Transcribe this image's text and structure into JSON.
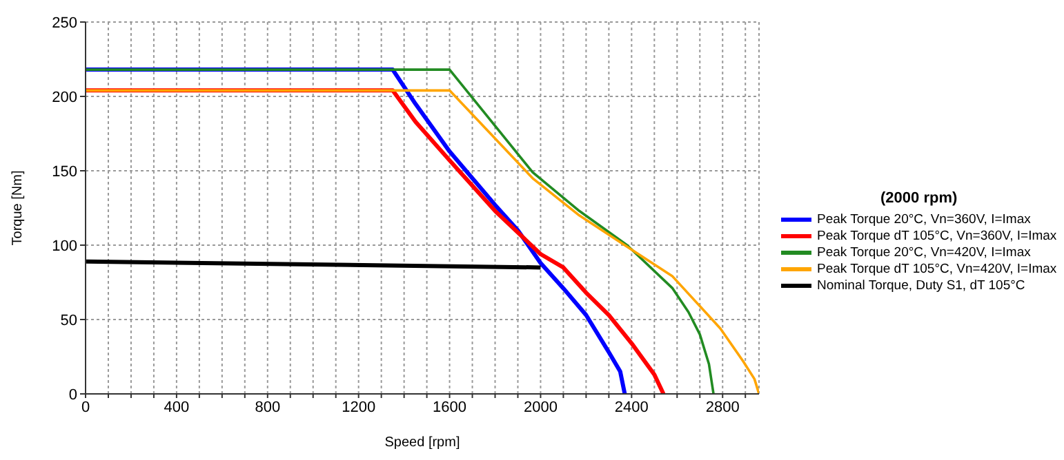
{
  "chart_data": {
    "type": "line",
    "xlabel": "Speed [rpm]",
    "ylabel": "Torque [Nm]",
    "legend_title": "(2000 rpm)",
    "legend": "right",
    "grid": true,
    "marker": "none",
    "line_style": "solid",
    "xlim": [
      0,
      2960
    ],
    "ylim": [
      0,
      250
    ],
    "xticks": [
      0,
      {
        "value": 100,
        "label": null
      },
      {
        "value": 200,
        "label": null
      },
      {
        "value": 300,
        "label": null
      },
      400,
      {
        "value": 500,
        "label": null
      },
      {
        "value": 600,
        "label": null
      },
      {
        "value": 700,
        "label": null
      },
      800,
      {
        "value": 900,
        "label": null
      },
      {
        "value": 1000,
        "label": null
      },
      {
        "value": 1100,
        "label": null
      },
      1200,
      {
        "value": 1300,
        "label": null
      },
      {
        "value": 1400,
        "label": null
      },
      {
        "value": 1500,
        "label": null
      },
      1600,
      {
        "value": 1700,
        "label": null
      },
      {
        "value": 1800,
        "label": null
      },
      {
        "value": 1900,
        "label": null
      },
      2000,
      {
        "value": 2100,
        "label": null
      },
      {
        "value": 2200,
        "label": null
      },
      {
        "value": 2300,
        "label": null
      },
      2400,
      {
        "value": 2500,
        "label": null
      },
      {
        "value": 2600,
        "label": null
      },
      {
        "value": 2700,
        "label": null
      },
      2800,
      {
        "value": 2900,
        "label": null
      }
    ],
    "yticks": [
      0,
      50,
      100,
      150,
      200,
      250
    ],
    "series": [
      {
        "name": "Peak Torque 20°C, Vn=360V, I=Imax",
        "color": "#0000ff",
        "x": [
          0,
          1350,
          1450,
          1600,
          1800,
          1900,
          2000,
          2100,
          2200,
          2300,
          2350,
          2370
        ],
        "values": [
          218,
          218,
          195,
          163,
          127,
          110,
          88,
          71,
          53,
          28,
          15,
          0
        ]
      },
      {
        "name": "Peak Torque dT 105°C, Vn=360V, I=Imax",
        "color": "#ff0000",
        "x": [
          0,
          1350,
          1450,
          1600,
          1800,
          2000,
          2100,
          2200,
          2300,
          2400,
          2500,
          2540
        ],
        "values": [
          204,
          204,
          183,
          157,
          123,
          94,
          85,
          68,
          53,
          34,
          13,
          0
        ]
      },
      {
        "name": "Peak Torque 20°C, Vn=420V, I=Imax",
        "color": "#228b22",
        "x": [
          0,
          1600,
          1965,
          2170,
          2380,
          2580,
          2650,
          2700,
          2740,
          2760
        ],
        "values": [
          218,
          218,
          149,
          123,
          100,
          71,
          55,
          40,
          20,
          0
        ]
      },
      {
        "name": "Peak Torque dT 105°C, Vn=420V, I=Imax",
        "color": "#ffa500",
        "x": [
          0,
          1600,
          1965,
          2170,
          2380,
          2580,
          2790,
          2890,
          2940,
          2960
        ],
        "values": [
          204,
          204,
          145,
          120,
          99,
          79,
          44,
          22,
          10,
          0
        ]
      },
      {
        "name": "Nominal Torque, Duty S1, dT 105°C",
        "color": "#000000",
        "x": [
          0,
          2000
        ],
        "values": [
          89,
          85
        ]
      }
    ]
  }
}
